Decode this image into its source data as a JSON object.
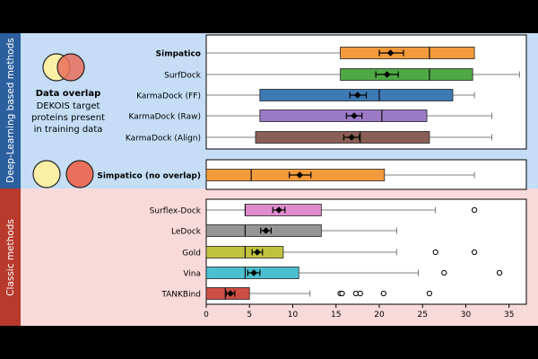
{
  "sections": {
    "dl": {
      "label": "Deep-Learning based methods",
      "band_color": "#2b5f9e",
      "bg_color": "#c5def5"
    },
    "classic": {
      "label": "Classic methods",
      "band_color": "#b73a2c",
      "bg_color": "#f8dada"
    }
  },
  "legend": {
    "title": "Data overlap",
    "lines": [
      "DEKOIS target",
      "proteins present",
      "in training data"
    ],
    "circle_left_color": "#fcf0a6",
    "circle_right_color": "#e9705c"
  },
  "overlap_circles": {
    "left_color": "#fcf0a6",
    "right_color": "#e9705c"
  },
  "chart_data": {
    "type": "boxplot",
    "xlim": [
      0,
      37
    ],
    "xticks": [
      0,
      5,
      10,
      15,
      20,
      25,
      30,
      35
    ],
    "panels": [
      {
        "id": "dl",
        "methods": [
          {
            "name": "Simpatico",
            "bold": true,
            "color": "#f39a3c",
            "q1": 15.5,
            "median": 25.8,
            "q3": 31.0,
            "whisker_low": 0,
            "whisker_high": 31.0,
            "mean": 21.3,
            "mean_ci": [
              20.0,
              22.8
            ],
            "outliers": []
          },
          {
            "name": "SurfDock",
            "bold": false,
            "color": "#4ea845",
            "q1": 15.5,
            "median": 25.8,
            "q3": 30.8,
            "whisker_low": 0,
            "whisker_high": 36.2,
            "mean": 20.9,
            "mean_ci": [
              19.6,
              22.2
            ],
            "outliers": []
          },
          {
            "name": "KarmaDock (FF)",
            "bold": false,
            "color": "#3d7ab5",
            "q1": 6.2,
            "median": 20.0,
            "q3": 28.5,
            "whisker_low": 0,
            "whisker_high": 31.0,
            "mean": 17.5,
            "mean_ci": [
              16.6,
              18.5
            ],
            "outliers": []
          },
          {
            "name": "KarmaDock (Raw)",
            "bold": false,
            "color": "#9b7ac6",
            "q1": 6.2,
            "median": 20.3,
            "q3": 25.5,
            "whisker_low": 0,
            "whisker_high": 33.0,
            "mean": 17.1,
            "mean_ci": [
              16.2,
              18.0
            ],
            "outliers": []
          },
          {
            "name": "KarmaDock (Align)",
            "bold": false,
            "color": "#8a5f55",
            "q1": 5.7,
            "median": 17.8,
            "q3": 25.8,
            "whisker_low": 0,
            "whisker_high": 33.0,
            "mean": 16.8,
            "mean_ci": [
              15.9,
              17.7
            ],
            "outliers": []
          }
        ]
      },
      {
        "id": "overlap",
        "methods": [
          {
            "name": "Simpatico (no overlap)",
            "bold": true,
            "color": "#f39a3c",
            "q1": 0,
            "median": 5.2,
            "q3": 20.6,
            "whisker_low": 0,
            "whisker_high": 31.0,
            "mean": 10.8,
            "mean_ci": [
              9.6,
              12.1
            ],
            "outliers": []
          }
        ]
      },
      {
        "id": "classic",
        "methods": [
          {
            "name": "Surflex-Dock",
            "bold": false,
            "color": "#df8bcc",
            "q1": 4.5,
            "median": 4.5,
            "q3": 13.3,
            "whisker_low": 0,
            "whisker_high": 26.5,
            "mean": 8.4,
            "mean_ci": [
              7.7,
              9.1
            ],
            "outliers": [
              31.0
            ]
          },
          {
            "name": "LeDock",
            "bold": false,
            "color": "#959595",
            "q1": 0,
            "median": 4.5,
            "q3": 13.3,
            "whisker_low": 0,
            "whisker_high": 22.0,
            "mean": 6.9,
            "mean_ci": [
              6.3,
              7.5
            ],
            "outliers": []
          },
          {
            "name": "Gold",
            "bold": false,
            "color": "#c2c241",
            "q1": 0,
            "median": 4.5,
            "q3": 8.9,
            "whisker_low": 0,
            "whisker_high": 22.0,
            "mean": 5.9,
            "mean_ci": [
              5.3,
              6.5
            ],
            "outliers": [
              26.5,
              31.0
            ]
          },
          {
            "name": "Vina",
            "bold": false,
            "color": "#4bbfcf",
            "q1": 0,
            "median": 4.5,
            "q3": 10.7,
            "whisker_low": 0,
            "whisker_high": 24.5,
            "mean": 5.5,
            "mean_ci": [
              4.8,
              6.2
            ],
            "outliers": [
              27.5,
              33.9
            ]
          },
          {
            "name": "TANKBind",
            "bold": false,
            "color": "#cd4e42",
            "q1": 0,
            "median": 2.2,
            "q3": 5.0,
            "whisker_low": 0,
            "whisker_high": 12.0,
            "mean": 2.8,
            "mean_ci": [
              2.3,
              3.3
            ],
            "outliers": [
              15.5,
              15.7,
              17.3,
              17.8,
              20.5,
              25.8
            ]
          }
        ]
      }
    ]
  }
}
